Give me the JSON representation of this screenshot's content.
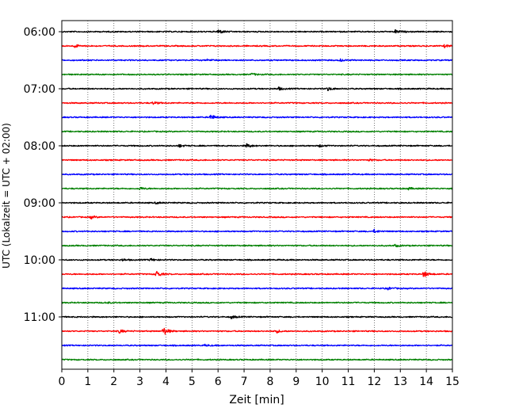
{
  "chart_data": {
    "type": "line",
    "title": "",
    "xlabel": "Zeit  [min]",
    "ylabel": "UTC (Lokalzeit = UTC + 02:00)",
    "xlim": [
      0,
      15
    ],
    "x_ticks": [
      "0",
      "1",
      "2",
      "3",
      "4",
      "5",
      "6",
      "7",
      "8",
      "9",
      "10",
      "11",
      "12",
      "13",
      "14",
      "15"
    ],
    "y_tick_labels": [
      {
        "label": "06:00",
        "row": 0
      },
      {
        "label": "07:00",
        "row": 4
      },
      {
        "label": "08:00",
        "row": 8
      },
      {
        "label": "09:00",
        "row": 12
      },
      {
        "label": "10:00",
        "row": 16
      },
      {
        "label": "11:00",
        "row": 20
      }
    ],
    "grid": "vertical dotted lines at every minute",
    "row_minutes": 15,
    "colors": [
      "#000000",
      "#ff0000",
      "#0000ff",
      "#008000"
    ],
    "series": [
      {
        "start": "06:00",
        "events": [
          {
            "minute": 6.0,
            "amplitude": 0.45
          },
          {
            "minute": 12.8,
            "amplitude": 0.35
          }
        ]
      },
      {
        "start": "06:15",
        "events": [
          {
            "minute": 0.5,
            "amplitude": 0.3
          },
          {
            "minute": 14.7,
            "amplitude": 0.25
          }
        ]
      },
      {
        "start": "06:30",
        "events": [
          {
            "minute": 5.6,
            "amplitude": 0.2
          },
          {
            "minute": 10.7,
            "amplitude": 0.2
          }
        ]
      },
      {
        "start": "06:45",
        "events": [
          {
            "minute": 7.3,
            "amplitude": 0.2
          }
        ]
      },
      {
        "start": "07:00",
        "events": [
          {
            "minute": 8.3,
            "amplitude": 0.3
          },
          {
            "minute": 10.2,
            "amplitude": 0.35
          }
        ]
      },
      {
        "start": "07:15",
        "events": [
          {
            "minute": 3.5,
            "amplitude": 0.25
          }
        ]
      },
      {
        "start": "07:30",
        "events": [
          {
            "minute": 5.7,
            "amplitude": 0.55
          }
        ]
      },
      {
        "start": "07:45",
        "events": []
      },
      {
        "start": "08:00",
        "events": [
          {
            "minute": 4.5,
            "amplitude": 0.25
          },
          {
            "minute": 7.1,
            "amplitude": 0.4
          },
          {
            "minute": 9.9,
            "amplitude": 0.2
          }
        ]
      },
      {
        "start": "08:15",
        "events": [
          {
            "minute": 11.8,
            "amplitude": 0.15
          }
        ]
      },
      {
        "start": "08:30",
        "events": []
      },
      {
        "start": "08:45",
        "events": [
          {
            "minute": 3.0,
            "amplitude": 0.25
          },
          {
            "minute": 13.3,
            "amplitude": 0.2
          }
        ]
      },
      {
        "start": "09:00",
        "events": [
          {
            "minute": 3.6,
            "amplitude": 0.15
          }
        ]
      },
      {
        "start": "09:15",
        "events": [
          {
            "minute": 1.1,
            "amplitude": 0.3
          }
        ]
      },
      {
        "start": "09:30",
        "events": [
          {
            "minute": 12.0,
            "amplitude": 0.3
          }
        ]
      },
      {
        "start": "09:45",
        "events": [
          {
            "minute": 12.8,
            "amplitude": 0.2
          }
        ]
      },
      {
        "start": "10:00",
        "events": [
          {
            "minute": 2.3,
            "amplitude": 0.2
          },
          {
            "minute": 3.4,
            "amplitude": 0.25
          }
        ]
      },
      {
        "start": "10:15",
        "events": [
          {
            "minute": 3.6,
            "amplitude": 0.75
          },
          {
            "minute": 13.9,
            "amplitude": 0.6
          }
        ]
      },
      {
        "start": "10:30",
        "events": [
          {
            "minute": 12.5,
            "amplitude": 0.25
          }
        ]
      },
      {
        "start": "10:45",
        "events": [
          {
            "minute": 1.7,
            "amplitude": 0.15
          }
        ]
      },
      {
        "start": "11:00",
        "events": [
          {
            "minute": 6.5,
            "amplitude": 0.3
          },
          {
            "minute": 15.0,
            "amplitude": 0.3
          }
        ]
      },
      {
        "start": "11:15",
        "events": [
          {
            "minute": 2.2,
            "amplitude": 0.35
          },
          {
            "minute": 3.9,
            "amplitude": 0.8
          },
          {
            "minute": 8.2,
            "amplitude": 0.35
          }
        ]
      },
      {
        "start": "11:30",
        "events": [
          {
            "minute": 5.5,
            "amplitude": 0.15
          }
        ]
      },
      {
        "start": "11:45",
        "events": []
      }
    ]
  }
}
